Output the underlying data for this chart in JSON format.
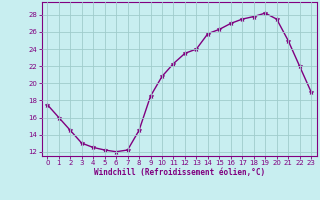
{
  "x": [
    0,
    1,
    2,
    3,
    4,
    5,
    6,
    7,
    8,
    9,
    10,
    11,
    12,
    13,
    14,
    15,
    16,
    17,
    18,
    19,
    20,
    21,
    22,
    23
  ],
  "y": [
    17.5,
    16.0,
    14.5,
    13.0,
    12.5,
    12.2,
    12.0,
    12.2,
    14.5,
    18.5,
    20.8,
    22.3,
    23.5,
    24.0,
    25.8,
    26.3,
    27.0,
    27.5,
    27.8,
    28.2,
    27.5,
    25.0,
    22.0,
    19.0
  ],
  "line_color": "#800080",
  "marker": "*",
  "marker_size": 3.5,
  "xlabel": "Windchill (Refroidissement éolien,°C)",
  "xlim": [
    -0.5,
    23.5
  ],
  "ylim": [
    11.5,
    29.5
  ],
  "yticks": [
    12,
    14,
    16,
    18,
    20,
    22,
    24,
    26,
    28
  ],
  "xticks": [
    0,
    1,
    2,
    3,
    4,
    5,
    6,
    7,
    8,
    9,
    10,
    11,
    12,
    13,
    14,
    15,
    16,
    17,
    18,
    19,
    20,
    21,
    22,
    23
  ],
  "bg_color": "#c8eef0",
  "grid_color": "#a0cccc",
  "font_color": "#800080",
  "tick_fontsize": 5.0,
  "xlabel_fontsize": 5.5,
  "linewidth": 1.0
}
